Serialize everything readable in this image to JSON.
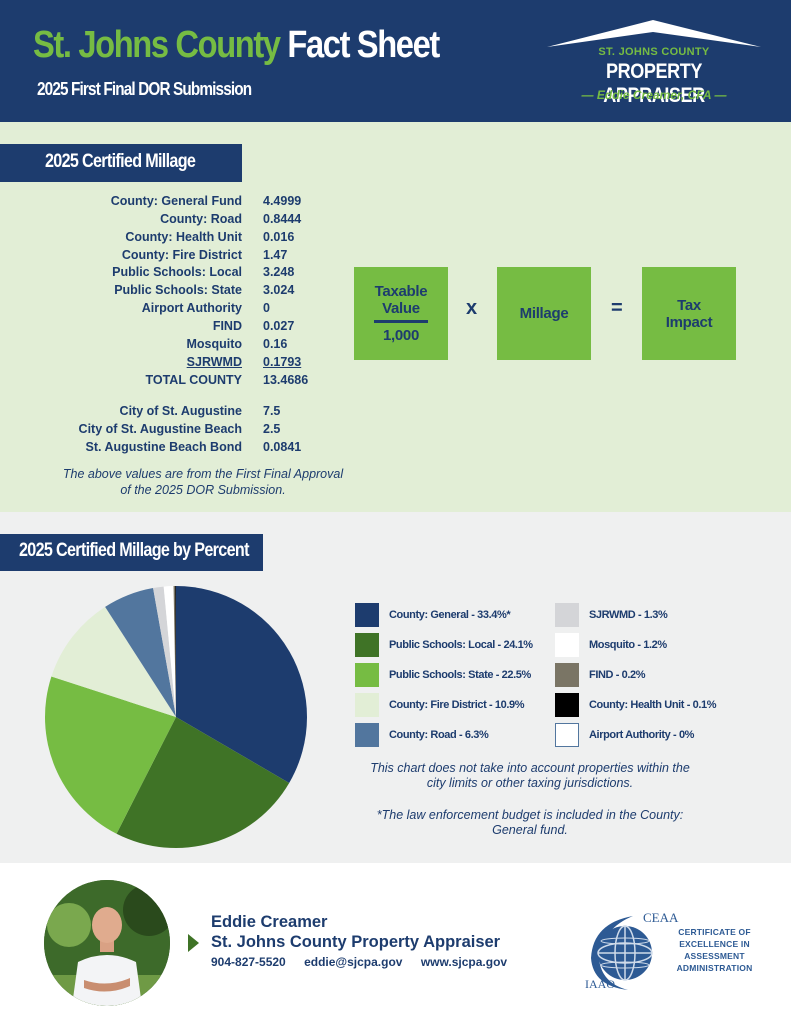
{
  "header": {
    "title_green": "St. Johns County",
    "title_white": "Fact Sheet",
    "subtitle": "2025 First Final DOR Submission",
    "logo": {
      "line1": "ST. JOHNS COUNTY",
      "line2": "PROPERTY APPRAISER",
      "line3": "— Eddie Creamer, CFA —"
    }
  },
  "millage": {
    "banner": "2025 Certified Millage",
    "rows": [
      {
        "label": "County: General Fund",
        "value": "4.4999"
      },
      {
        "label": "County: Road",
        "value": "0.8444"
      },
      {
        "label": "County: Health Unit",
        "value": "0.016"
      },
      {
        "label": "County: Fire District",
        "value": "1.47"
      },
      {
        "label": "Public Schools: Local",
        "value": "3.248"
      },
      {
        "label": "Public Schools: State",
        "value": "3.024"
      },
      {
        "label": "Airport Authority",
        "value": "0"
      },
      {
        "label": "FIND",
        "value": "0.027"
      },
      {
        "label": "Mosquito",
        "value": "0.16"
      },
      {
        "label": "SJRWMD",
        "value": "0.1793"
      },
      {
        "label": "TOTAL COUNTY",
        "value": "13.4686"
      }
    ],
    "city_rows": [
      {
        "label": "City of St. Augustine",
        "value": "7.5"
      },
      {
        "label": "City of St. Augustine Beach",
        "value": "2.5"
      },
      {
        "label": "St. Augustine Beach Bond",
        "value": "0.0841"
      }
    ],
    "note": "The above values are from the First Final Approval of the 2025 DOR Submission."
  },
  "formula": {
    "taxable_line1": "Taxable",
    "taxable_line2": "Value",
    "denominator": "1,000",
    "times": "x",
    "millage": "Millage",
    "equals": "=",
    "tax_line1": "Tax",
    "tax_line2": "Impact"
  },
  "percent": {
    "banner": "2025 Certified Millage by Percent",
    "note1": "This chart does not take into account properties within the city limits or other taxing jurisdictions.",
    "note2": "*The law enforcement budget is included in the County: General fund."
  },
  "chart_data": {
    "type": "pie",
    "title": "2025 Certified Millage by Percent",
    "legend_position": "right",
    "start_angle": "12 o'clock, clockwise",
    "categories": [
      "County: General",
      "Public Schools: Local",
      "Public Schools: State",
      "County: Fire District",
      "County: Road",
      "SJRWMD",
      "Mosquito",
      "FIND",
      "County: Health Unit",
      "Airport Authority"
    ],
    "values": [
      33.4,
      24.1,
      22.5,
      10.9,
      6.3,
      1.3,
      1.2,
      0.2,
      0.1,
      0
    ],
    "labels": [
      "County: General - 33.4%*",
      "Public Schools: Local - 24.1%",
      "Public Schools: State - 22.5%",
      "County: Fire District - 10.9%",
      "County: Road - 6.3%",
      "SJRWMD - 1.3%",
      "Mosquito - 1.2%",
      "FIND - 0.2%",
      "County: Health Unit - 0.1%",
      "Airport Authority - 0%"
    ],
    "colors": [
      "#1d3c6e",
      "#3f7326",
      "#76bc43",
      "#e2eed6",
      "#52769e",
      "#d4d5d8",
      "#ffffff",
      "#7a7565",
      "#000000",
      "#ffffff"
    ]
  },
  "footer": {
    "name": "Eddie Creamer",
    "title": "St. Johns County Property Appraiser",
    "phone": "904-827-5520",
    "email": "eddie@sjcpa.gov",
    "website": "www.sjcpa.gov",
    "badge_top": "CEAA",
    "badge_bottom": "IAAO",
    "badge_text": "CERTIFICATE OF EXCELLENCE IN ASSESSMENT ADMINISTRATION"
  },
  "colors": {
    "navy": "#1d3c6e",
    "green": "#76bc43",
    "dark_green": "#3f7326",
    "light_green_bg": "#e2eed6",
    "gray_bg": "#eff0f0"
  }
}
